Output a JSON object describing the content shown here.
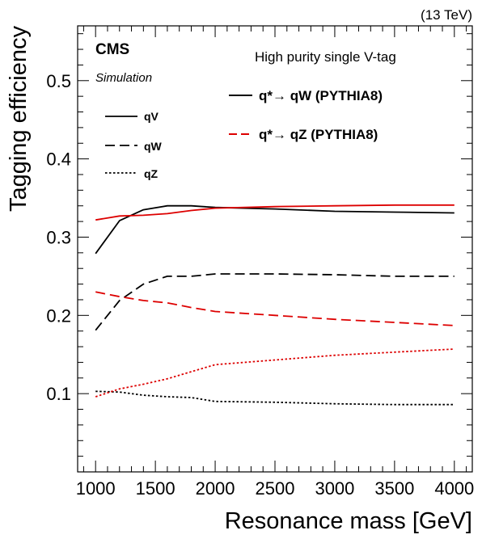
{
  "chart_data": {
    "type": "line",
    "energy_label": "(13 TeV)",
    "experiment": "CMS",
    "sublabel": "Simulation",
    "category": "High purity single V-tag",
    "xlabel": "Resonance mass [GeV]",
    "ylabel": "Tagging efficiency",
    "xlim": [
      850,
      4150
    ],
    "ylim": [
      0.0,
      0.57
    ],
    "x_ticks": [
      1000,
      1500,
      2000,
      2500,
      3000,
      3500,
      4000
    ],
    "y_ticks": [
      0.1,
      0.2,
      0.3,
      0.4,
      0.5
    ],
    "x_tick_labels": [
      "1000",
      "1500",
      "2000",
      "2500",
      "3000",
      "3500",
      "4000"
    ],
    "y_tick_labels": [
      "0.1",
      "0.2",
      "0.3",
      "0.4",
      "0.5"
    ],
    "colors": {
      "qW": "#000000",
      "qZ": "#dd0000"
    },
    "line_styles": {
      "qV": "solid",
      "qW": "dashed",
      "qZ": "dotted"
    },
    "legend_process": [
      {
        "label": "q*→ qW (PYTHIA8)",
        "color": "#000000"
      },
      {
        "label": "q*→ qZ (PYTHIA8)",
        "color": "#dd0000"
      }
    ],
    "legend_style": [
      {
        "label": "qV",
        "style": "solid"
      },
      {
        "label": "qW",
        "style": "dashed"
      },
      {
        "label": "qZ",
        "style": "dotted"
      }
    ],
    "series": [
      {
        "process": "qW",
        "tag": "qV",
        "style": "solid",
        "color": "#000000",
        "x": [
          1000,
          1200,
          1400,
          1600,
          1800,
          2000,
          2500,
          3000,
          3500,
          4000
        ],
        "y": [
          0.279,
          0.321,
          0.335,
          0.34,
          0.34,
          0.338,
          0.336,
          0.333,
          0.332,
          0.331
        ]
      },
      {
        "process": "qW",
        "tag": "qW",
        "style": "dashed",
        "color": "#000000",
        "x": [
          1000,
          1200,
          1400,
          1600,
          1800,
          2000,
          2500,
          3000,
          3500,
          4000
        ],
        "y": [
          0.181,
          0.219,
          0.24,
          0.25,
          0.25,
          0.253,
          0.253,
          0.252,
          0.25,
          0.25
        ]
      },
      {
        "process": "qW",
        "tag": "qZ",
        "style": "dotted",
        "color": "#000000",
        "x": [
          1000,
          1200,
          1400,
          1600,
          1800,
          2000,
          2500,
          3000,
          3500,
          4000
        ],
        "y": [
          0.103,
          0.102,
          0.098,
          0.096,
          0.095,
          0.09,
          0.089,
          0.087,
          0.086,
          0.086
        ]
      },
      {
        "process": "qZ",
        "tag": "qV",
        "style": "solid",
        "color": "#dd0000",
        "x": [
          1000,
          1200,
          1400,
          1600,
          1800,
          2000,
          2500,
          3000,
          3500,
          4000
        ],
        "y": [
          0.322,
          0.327,
          0.328,
          0.33,
          0.334,
          0.337,
          0.339,
          0.34,
          0.341,
          0.341
        ]
      },
      {
        "process": "qZ",
        "tag": "qW",
        "style": "dashed",
        "color": "#dd0000",
        "x": [
          1000,
          1200,
          1400,
          1600,
          1800,
          2000,
          2500,
          3000,
          3500,
          4000
        ],
        "y": [
          0.23,
          0.224,
          0.219,
          0.216,
          0.21,
          0.205,
          0.2,
          0.195,
          0.191,
          0.187
        ]
      },
      {
        "process": "qZ",
        "tag": "qZ",
        "style": "dotted",
        "color": "#dd0000",
        "x": [
          1000,
          1200,
          1400,
          1600,
          1800,
          2000,
          2500,
          3000,
          3500,
          4000
        ],
        "y": [
          0.096,
          0.106,
          0.112,
          0.119,
          0.128,
          0.137,
          0.143,
          0.149,
          0.153,
          0.157
        ]
      }
    ]
  }
}
